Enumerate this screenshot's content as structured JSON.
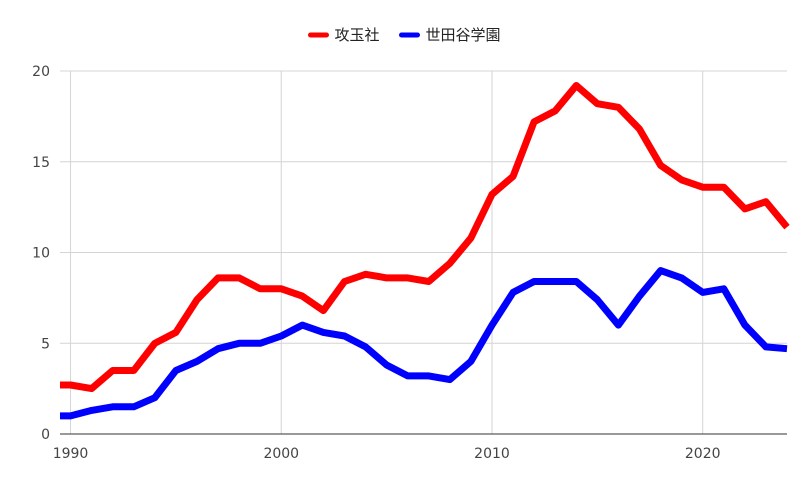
{
  "chart_data": {
    "type": "line",
    "title": "",
    "xlabel": "",
    "ylabel": "",
    "xlim": [
      1989.5,
      2024
    ],
    "ylim": [
      0,
      20
    ],
    "x_ticks": [
      1990,
      2000,
      2010,
      2020
    ],
    "y_ticks": [
      0,
      5,
      10,
      15,
      20
    ],
    "grid": true,
    "legend_position": "top-center",
    "x": [
      1989.5,
      1990,
      1991,
      1992,
      1993,
      1994,
      1995,
      1996,
      1997,
      1998,
      1999,
      2000,
      2001,
      2002,
      2003,
      2004,
      2005,
      2006,
      2007,
      2008,
      2009,
      2010,
      2011,
      2012,
      2013,
      2014,
      2015,
      2016,
      2017,
      2018,
      2019,
      2020,
      2021,
      2022,
      2023,
      2024
    ],
    "series": [
      {
        "name": "攻玉社",
        "color": "#ff0000",
        "values": [
          2.7,
          2.7,
          2.5,
          3.5,
          3.5,
          5.0,
          5.6,
          7.4,
          8.6,
          8.6,
          8.0,
          8.0,
          7.6,
          6.8,
          8.4,
          8.8,
          8.6,
          8.6,
          8.4,
          9.4,
          10.8,
          13.2,
          14.2,
          17.2,
          17.8,
          19.2,
          18.2,
          18.0,
          16.8,
          14.8,
          14.0,
          13.6,
          13.6,
          12.4,
          12.8,
          11.4
        ]
      },
      {
        "name": "世田谷学園",
        "color": "#0000ff",
        "values": [
          1.0,
          1.0,
          1.3,
          1.5,
          1.5,
          2.0,
          3.5,
          4.0,
          4.7,
          5.0,
          5.0,
          5.4,
          6.0,
          5.6,
          5.4,
          4.8,
          3.8,
          3.2,
          3.2,
          3.0,
          4.0,
          6.0,
          7.8,
          8.4,
          8.4,
          8.4,
          7.4,
          6.0,
          7.6,
          9.0,
          8.6,
          7.8,
          8.0,
          6.0,
          4.8,
          4.7
        ]
      }
    ]
  }
}
